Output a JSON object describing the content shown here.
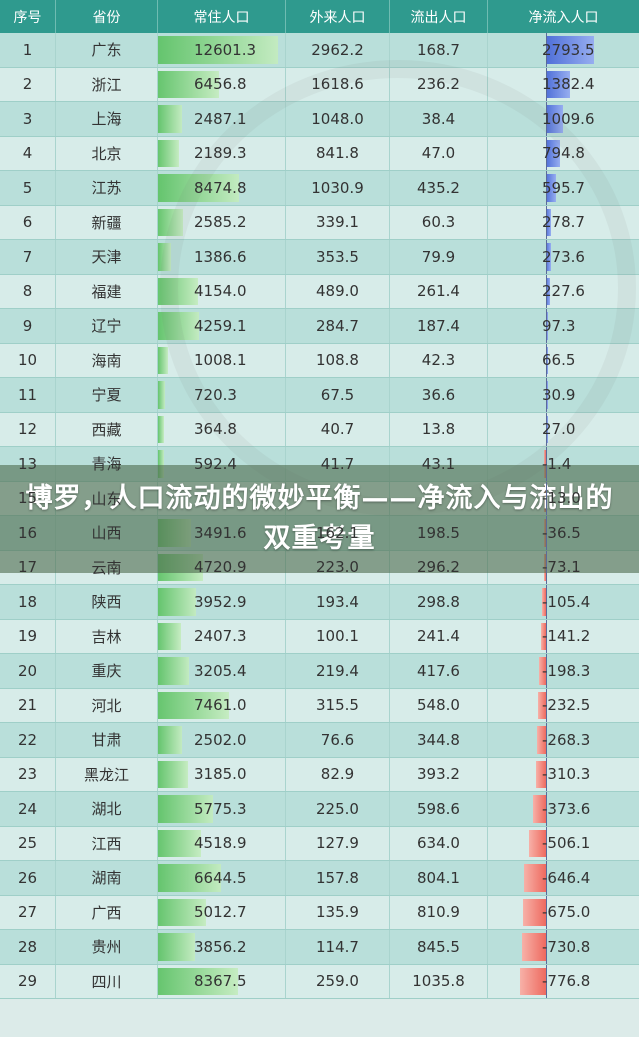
{
  "headers": [
    "序号",
    "省份",
    "常住人口",
    "外来人口",
    "流出人口",
    "净流入人口"
  ],
  "banner_title": "博罗，人口流动的微妙平衡——净流入与流出的双重考量",
  "colors": {
    "header_bg": "#2f9a8e",
    "resident_bar": "#60c368",
    "net_positive_bar": "#4f6fd8",
    "net_negative_bar": "#ee6a5f"
  },
  "rows": [
    {
      "rank": "1",
      "province": "广东",
      "resident": "12601.3",
      "outsiders": "2962.2",
      "outflow": "168.7",
      "net": "2793.5"
    },
    {
      "rank": "2",
      "province": "浙江",
      "resident": "6456.8",
      "outsiders": "1618.6",
      "outflow": "236.2",
      "net": "1382.4"
    },
    {
      "rank": "3",
      "province": "上海",
      "resident": "2487.1",
      "outsiders": "1048.0",
      "outflow": "38.4",
      "net": "1009.6"
    },
    {
      "rank": "4",
      "province": "北京",
      "resident": "2189.3",
      "outsiders": "841.8",
      "outflow": "47.0",
      "net": "794.8"
    },
    {
      "rank": "5",
      "province": "江苏",
      "resident": "8474.8",
      "outsiders": "1030.9",
      "outflow": "435.2",
      "net": "595.7"
    },
    {
      "rank": "6",
      "province": "新疆",
      "resident": "2585.2",
      "outsiders": "339.1",
      "outflow": "60.3",
      "net": "278.7"
    },
    {
      "rank": "7",
      "province": "天津",
      "resident": "1386.6",
      "outsiders": "353.5",
      "outflow": "79.9",
      "net": "273.6"
    },
    {
      "rank": "8",
      "province": "福建",
      "resident": "4154.0",
      "outsiders": "489.0",
      "outflow": "261.4",
      "net": "227.6"
    },
    {
      "rank": "9",
      "province": "辽宁",
      "resident": "4259.1",
      "outsiders": "284.7",
      "outflow": "187.4",
      "net": "97.3"
    },
    {
      "rank": "10",
      "province": "海南",
      "resident": "1008.1",
      "outsiders": "108.8",
      "outflow": "42.3",
      "net": "66.5"
    },
    {
      "rank": "11",
      "province": "宁夏",
      "resident": "720.3",
      "outsiders": "67.5",
      "outflow": "36.6",
      "net": "30.9"
    },
    {
      "rank": "12",
      "province": "西藏",
      "resident": "364.8",
      "outsiders": "40.7",
      "outflow": "13.8",
      "net": "27.0"
    },
    {
      "rank": "13",
      "province": "青海",
      "resident": "592.4",
      "outsiders": "41.7",
      "outflow": "43.1",
      "net": "-1.4"
    },
    {
      "rank": "15",
      "province": "山东",
      "resident": "",
      "outsiders": "",
      "outflow": "",
      "net": "-13.0"
    },
    {
      "rank": "16",
      "province": "山西",
      "resident": "3491.6",
      "outsiders": "162.1",
      "outflow": "198.5",
      "net": "-36.5"
    },
    {
      "rank": "17",
      "province": "云南",
      "resident": "4720.9",
      "outsiders": "223.0",
      "outflow": "296.2",
      "net": "-73.1"
    },
    {
      "rank": "18",
      "province": "陕西",
      "resident": "3952.9",
      "outsiders": "193.4",
      "outflow": "298.8",
      "net": "-105.4"
    },
    {
      "rank": "19",
      "province": "吉林",
      "resident": "2407.3",
      "outsiders": "100.1",
      "outflow": "241.4",
      "net": "-141.2"
    },
    {
      "rank": "20",
      "province": "重庆",
      "resident": "3205.4",
      "outsiders": "219.4",
      "outflow": "417.6",
      "net": "-198.3"
    },
    {
      "rank": "21",
      "province": "河北",
      "resident": "7461.0",
      "outsiders": "315.5",
      "outflow": "548.0",
      "net": "-232.5"
    },
    {
      "rank": "22",
      "province": "甘肃",
      "resident": "2502.0",
      "outsiders": "76.6",
      "outflow": "344.8",
      "net": "-268.3"
    },
    {
      "rank": "23",
      "province": "黑龙江",
      "resident": "3185.0",
      "outsiders": "82.9",
      "outflow": "393.2",
      "net": "-310.3"
    },
    {
      "rank": "24",
      "province": "湖北",
      "resident": "5775.3",
      "outsiders": "225.0",
      "outflow": "598.6",
      "net": "-373.6"
    },
    {
      "rank": "25",
      "province": "江西",
      "resident": "4518.9",
      "outsiders": "127.9",
      "outflow": "634.0",
      "net": "-506.1"
    },
    {
      "rank": "26",
      "province": "湖南",
      "resident": "6644.5",
      "outsiders": "157.8",
      "outflow": "804.1",
      "net": "-646.4"
    },
    {
      "rank": "27",
      "province": "广西",
      "resident": "5012.7",
      "outsiders": "135.9",
      "outflow": "810.9",
      "net": "-675.0"
    },
    {
      "rank": "28",
      "province": "贵州",
      "resident": "3856.2",
      "outsiders": "114.7",
      "outflow": "845.5",
      "net": "-730.8"
    },
    {
      "rank": "29",
      "province": "四川",
      "resident": "8367.5",
      "outsiders": "259.0",
      "outflow": "1035.8",
      "net": "-776.8"
    }
  ]
}
